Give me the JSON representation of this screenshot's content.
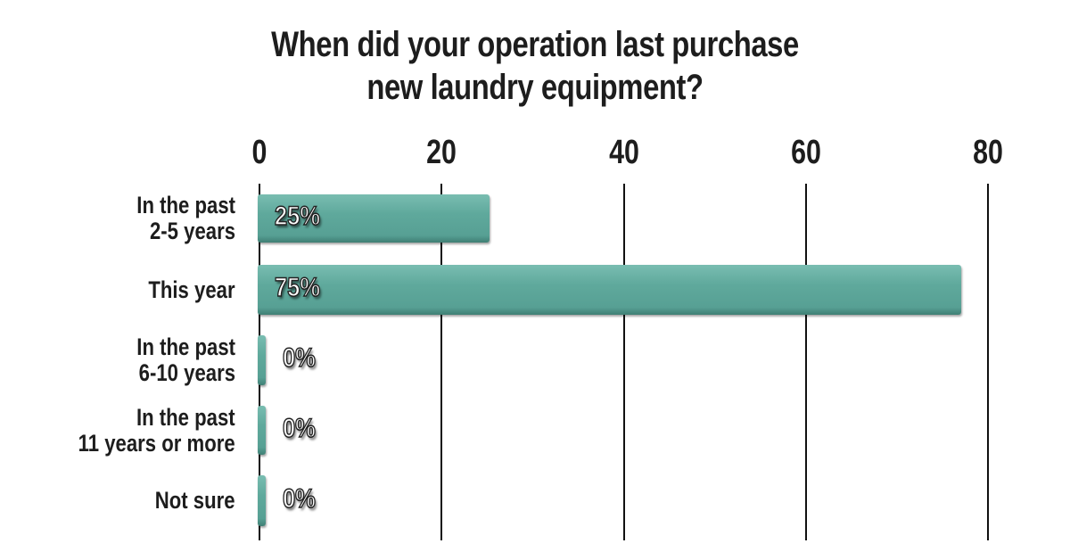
{
  "chart_data": {
    "type": "bar",
    "orientation": "horizontal",
    "title": "When did your operation last purchase new laundry equipment?",
    "title_lines": [
      "When did your operation last purchase",
      "new laundry equipment?"
    ],
    "categories": [
      "In the past 2-5 years",
      "This year",
      "In the past 6-10 years",
      "In the past 11 years or more",
      "Not sure"
    ],
    "category_lines": [
      [
        "In the past",
        "2-5 years"
      ],
      [
        "This year"
      ],
      [
        "In the past",
        "6-10 years"
      ],
      [
        "In the past",
        "11 years or more"
      ],
      [
        "Not sure"
      ]
    ],
    "values": [
      25,
      75,
      0,
      0,
      0
    ],
    "value_labels": [
      "25%",
      "75%",
      "0%",
      "0%",
      "0%"
    ],
    "xlabel": "",
    "ylabel": "",
    "xlim": [
      0,
      80
    ],
    "x_ticks": [
      "0",
      "20",
      "40",
      "60",
      "80"
    ],
    "grid": true,
    "legend": null,
    "bar_color": "#5fa99c"
  }
}
